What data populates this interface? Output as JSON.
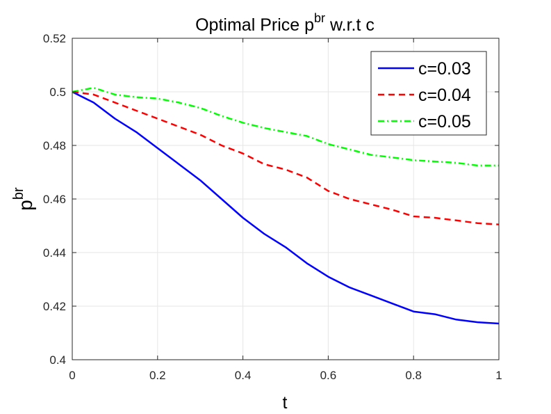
{
  "chart_data": {
    "type": "line",
    "title": "Optimal Price p",
    "title_sup": "br",
    "title_suffix": " w.r.t c",
    "xlabel": "t",
    "ylabel": "p",
    "ylabel_sup": "br",
    "xlim": [
      0,
      1
    ],
    "ylim": [
      0.4,
      0.52
    ],
    "xticks": [
      0,
      0.2,
      0.4,
      0.6,
      0.8,
      1
    ],
    "xtick_labels": [
      "0",
      "0.2",
      "0.4",
      "0.6",
      "0.8",
      "1"
    ],
    "yticks": [
      0.4,
      0.42,
      0.44,
      0.46,
      0.48,
      0.5,
      0.52
    ],
    "ytick_labels": [
      "0.4",
      "0.42",
      "0.44",
      "0.46",
      "0.48",
      "0.5",
      "0.52"
    ],
    "grid": true,
    "legend_position": "top-right",
    "x": [
      0,
      0.05,
      0.1,
      0.15,
      0.2,
      0.25,
      0.3,
      0.35,
      0.4,
      0.45,
      0.5,
      0.55,
      0.6,
      0.65,
      0.7,
      0.75,
      0.8,
      0.85,
      0.9,
      0.95,
      1.0
    ],
    "series": [
      {
        "name": "c=0.03",
        "color": "#0000ff",
        "style": "solid",
        "values": [
          0.5,
          0.496,
          0.49,
          0.485,
          0.479,
          0.473,
          0.467,
          0.46,
          0.453,
          0.447,
          0.442,
          0.436,
          0.431,
          0.427,
          0.424,
          0.421,
          0.418,
          0.417,
          0.415,
          0.414,
          0.4135
        ]
      },
      {
        "name": "c=0.04",
        "color": "#ff0000",
        "style": "dashed",
        "values": [
          0.5,
          0.499,
          0.496,
          0.493,
          0.49,
          0.487,
          0.484,
          0.48,
          0.477,
          0.473,
          0.471,
          0.468,
          0.463,
          0.46,
          0.458,
          0.456,
          0.4535,
          0.453,
          0.452,
          0.451,
          0.4505
        ]
      },
      {
        "name": "c=0.05",
        "color": "#00ff00",
        "style": "dashdot",
        "values": [
          0.5,
          0.5015,
          0.499,
          0.498,
          0.4975,
          0.496,
          0.494,
          0.491,
          0.4885,
          0.4865,
          0.485,
          0.4835,
          0.4805,
          0.4785,
          0.4765,
          0.4755,
          0.4745,
          0.474,
          0.4735,
          0.4725,
          0.4725
        ]
      }
    ]
  }
}
